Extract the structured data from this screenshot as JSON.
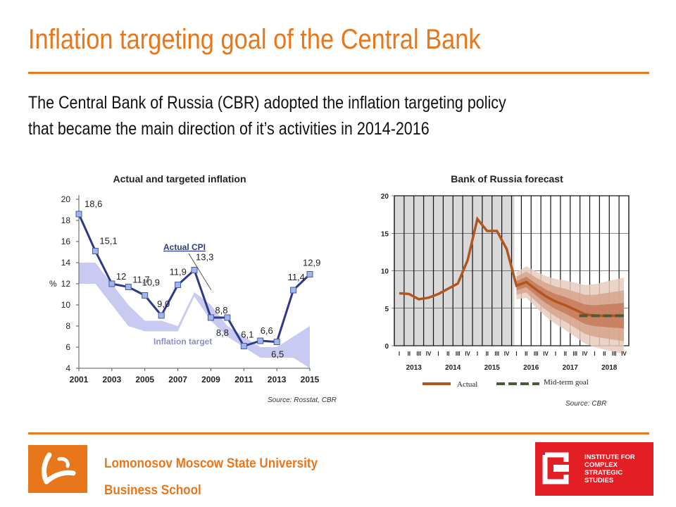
{
  "slide": {
    "title": "Inflation targeting goal of the Central Bank",
    "subtitle_lines": [
      "The Central Bank of Russia (CBR) adopted the inflation targeting policy",
      "that became the main direction of it’s activities in 2014-2016"
    ]
  },
  "footer": {
    "university": "Lomonosov Moscow State University",
    "school": "Business School",
    "institute_logo_text": "INSTITUTE FOR\nCOMPLEX\nSTRATEGIC\nSTUDIES"
  },
  "colors": {
    "accent": "#e8761b",
    "cpi_line": "#2d3a8c",
    "target_band": "#c9caf2",
    "forecast_line": "#b3551e",
    "goal_line": "#4b5b3a",
    "logo_red": "#e31e24"
  },
  "chart_data": [
    {
      "type": "line",
      "title": "Actual and targeted inflation",
      "ylabel": "%",
      "x": [
        2001,
        2002,
        2003,
        2004,
        2005,
        2006,
        2007,
        2008,
        2009,
        2010,
        2011,
        2012,
        2013,
        2014,
        2015
      ],
      "x_tick_labels": [
        "2001",
        "2003",
        "2005",
        "2007",
        "2009",
        "2011",
        "2013",
        "2015"
      ],
      "y_ticks": [
        "4",
        "6",
        "8",
        "10",
        "12",
        "14",
        "16",
        "18",
        "20"
      ],
      "ylim": [
        4,
        20
      ],
      "series": [
        {
          "name": "Actual CPI",
          "values": [
            18.6,
            15.1,
            12.0,
            11.7,
            10.9,
            9.0,
            11.9,
            13.3,
            8.8,
            8.8,
            6.1,
            6.6,
            6.5,
            11.4,
            12.9
          ],
          "point_labels": [
            "18,6",
            "15,1",
            "12",
            "11,7",
            "10,9",
            "9,0",
            "11,9",
            "13,3",
            "8,8",
            "8,8",
            "6,1",
            "6,6",
            "6,5",
            "11,4",
            "12,9"
          ]
        }
      ],
      "band": {
        "name": "Inflation target",
        "x": [
          2001,
          2002,
          2003,
          2004,
          2005,
          2006,
          2007,
          2008,
          2009,
          2010,
          2011,
          2012,
          2013,
          2014,
          2015
        ],
        "low": [
          12,
          12,
          10,
          8,
          7.5,
          7.5,
          7.5,
          10.8,
          8.5,
          7,
          6,
          5,
          5,
          5,
          4
        ],
        "high": [
          14,
          14,
          12,
          10,
          8.5,
          8.5,
          8,
          11.2,
          10,
          8,
          7,
          6,
          6,
          7,
          8
        ]
      },
      "annotations": [
        "Actual CPI",
        "Inflation target"
      ],
      "source": "Source: Rosstat, CBR"
    },
    {
      "type": "line",
      "title": "Bank of Russia forecast",
      "y_ticks": [
        "0",
        "5",
        "10",
        "15",
        "20"
      ],
      "ylim": [
        0,
        20
      ],
      "x_quarter_labels": [
        "I",
        "II",
        "III",
        "IV",
        "I",
        "II",
        "III",
        "IV",
        "I",
        "II",
        "III",
        "IV",
        "I",
        "II",
        "III",
        "IV",
        "I",
        "II",
        "III",
        "IV",
        "I",
        "II",
        "III",
        "IV"
      ],
      "x_year_labels": [
        "2013",
        "2014",
        "2015",
        "2016",
        "2017",
        "2018"
      ],
      "series": [
        {
          "name": "Actual",
          "values": [
            7.0,
            6.9,
            6.2,
            6.4,
            6.9,
            7.6,
            8.3,
            11.4,
            16.9,
            15.3,
            15.3,
            12.9,
            8.0,
            8.5,
            7.5,
            6.6,
            5.9,
            5.4,
            4.8,
            4.2,
            4.0,
            4.0,
            4.0,
            4.0
          ]
        },
        {
          "name": "Mid-term goal",
          "x_start_quarter": 19,
          "values": [
            4,
            4,
            4,
            4,
            4
          ]
        }
      ],
      "legend": {
        "placement": "bottom",
        "entries": [
          "Actual",
          "Mid-term goal"
        ]
      },
      "source": "Source: CBR"
    }
  ]
}
